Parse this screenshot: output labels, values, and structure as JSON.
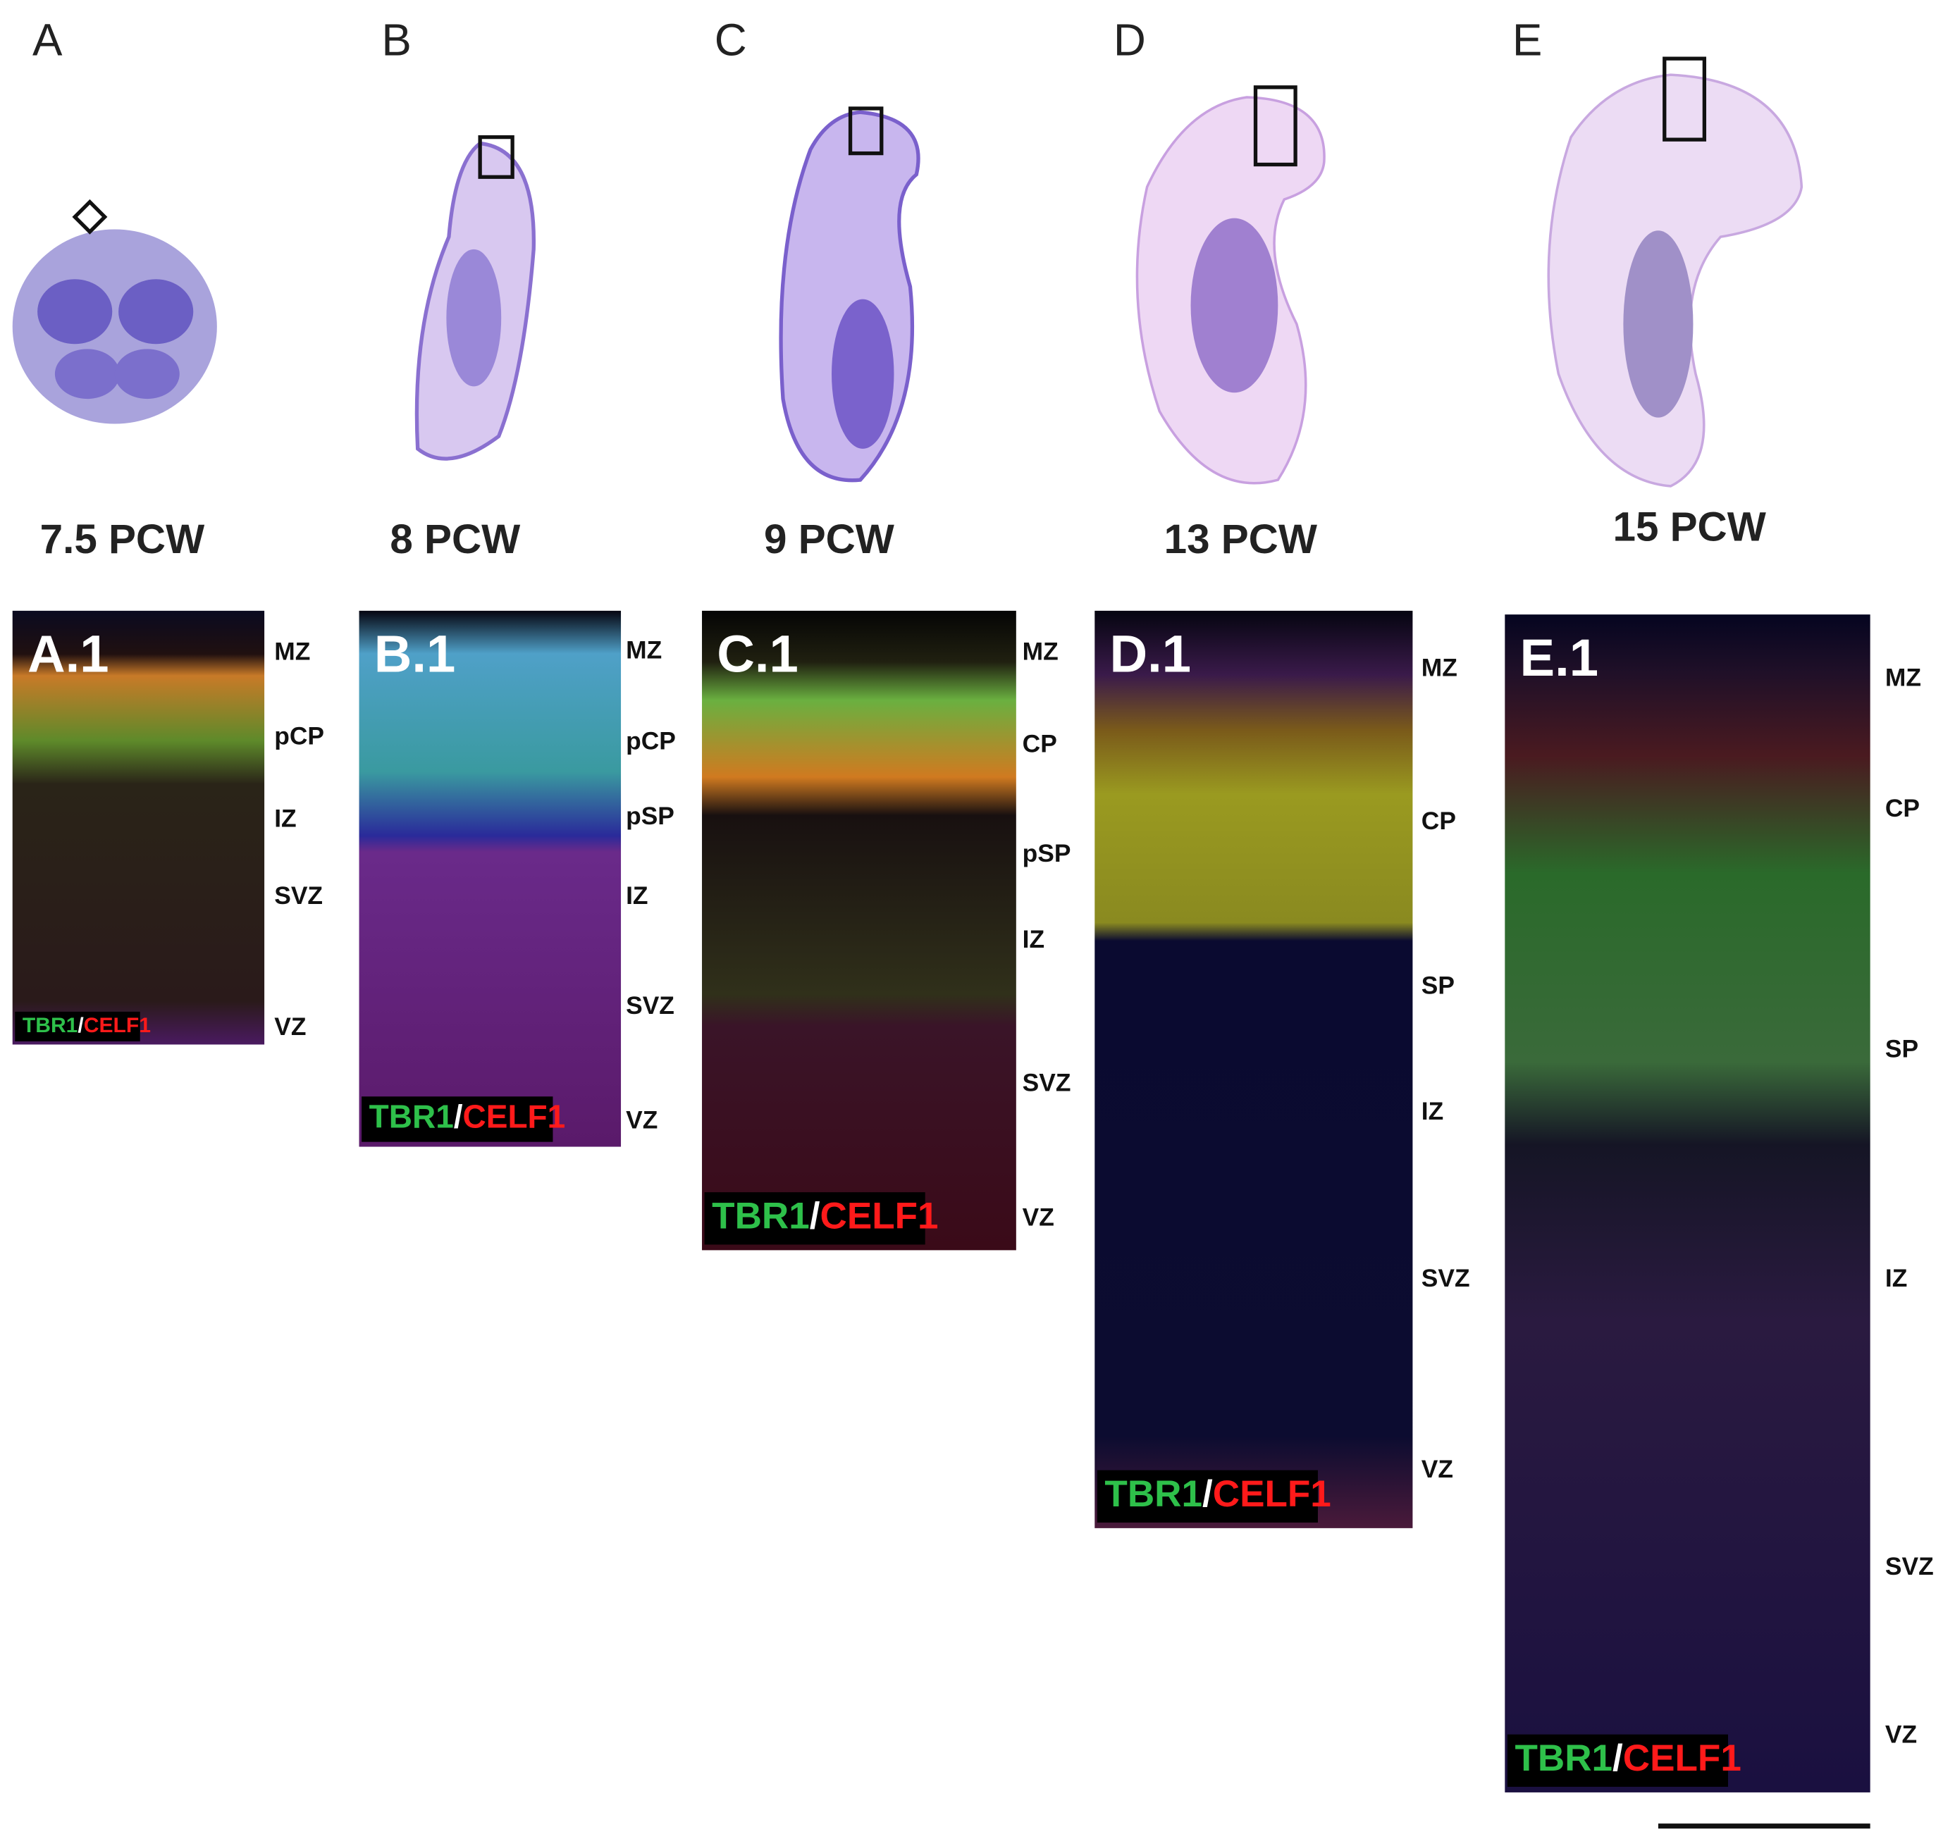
{
  "panels": [
    {
      "letter": "A",
      "age": "7.5 PCW",
      "label": "A.1",
      "layers": [
        "MZ",
        "pCP",
        "IZ",
        "SVZ",
        "VZ"
      ],
      "stain": [
        "TBR1",
        "/",
        "CELF1"
      ]
    },
    {
      "letter": "B",
      "age": "8 PCW",
      "label": "B.1",
      "layers": [
        "MZ",
        "pCP",
        "pSP",
        "IZ",
        "SVZ",
        "VZ"
      ],
      "stain": [
        "TBR1",
        "/",
        "CELF1"
      ]
    },
    {
      "letter": "C",
      "age": "9 PCW",
      "label": "C.1",
      "layers": [
        "MZ",
        "CP",
        "pSP",
        "IZ",
        "SVZ",
        "VZ"
      ],
      "stain": [
        "TBR1",
        "/",
        "CELF1"
      ]
    },
    {
      "letter": "D",
      "age": "13 PCW",
      "label": "D.1",
      "layers": [
        "MZ",
        "CP",
        "SP",
        "IZ",
        "SVZ",
        "VZ"
      ],
      "stain": [
        "TBR1",
        "/",
        "CELF1"
      ]
    },
    {
      "letter": "E",
      "age": "15 PCW",
      "label": "E.1",
      "layers": [
        "MZ",
        "CP",
        "SP",
        "IZ",
        "SVZ",
        "VZ"
      ],
      "stain": [
        "TBR1",
        "/",
        "CELF1"
      ]
    }
  ]
}
